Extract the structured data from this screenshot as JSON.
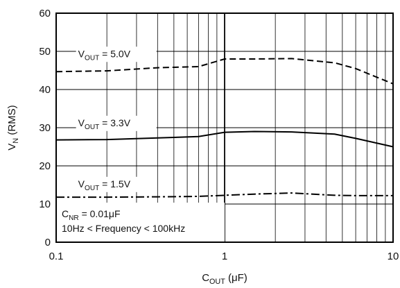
{
  "chart_data": {
    "type": "line",
    "x_scale": "log",
    "xlim": [
      0.1,
      10
    ],
    "ylim": [
      0,
      60
    ],
    "grid": true,
    "x_ticks": [
      {
        "value": 0.1,
        "label": "0.1"
      },
      {
        "value": 1,
        "label": "1"
      },
      {
        "value": 10,
        "label": "10"
      }
    ],
    "y_ticks": [
      {
        "value": 0,
        "label": "0"
      },
      {
        "value": 10,
        "label": "10"
      },
      {
        "value": 20,
        "label": "20"
      },
      {
        "value": 30,
        "label": "30"
      },
      {
        "value": 40,
        "label": "40"
      },
      {
        "value": 50,
        "label": "50"
      },
      {
        "value": 60,
        "label": "60"
      }
    ],
    "xlabel": {
      "main": "C",
      "sub": "OUT",
      "rest": " (μF)"
    },
    "ylabel": {
      "main": "V",
      "sub": "N",
      "rest": " (RMS)"
    },
    "series": [
      {
        "name": {
          "main": "V",
          "sub": "OUT",
          "rest": " = 5.0V"
        },
        "dash": "dashed",
        "x": [
          0.1,
          0.2,
          0.4,
          0.7,
          1.0,
          1.5,
          2.5,
          4.5,
          6.0,
          10
        ],
        "y": [
          44.7,
          44.9,
          45.7,
          46.0,
          48.0,
          48.0,
          48.1,
          47.0,
          45.5,
          41.5
        ]
      },
      {
        "name": {
          "main": "V",
          "sub": "OUT",
          "rest": " = 3.3V"
        },
        "dash": "solid",
        "x": [
          0.1,
          0.2,
          0.4,
          0.7,
          1.0,
          1.5,
          2.5,
          4.5,
          6.0,
          10
        ],
        "y": [
          26.8,
          26.9,
          27.3,
          27.7,
          28.8,
          29.0,
          28.9,
          28.3,
          27.2,
          25.0
        ]
      },
      {
        "name": {
          "main": "V",
          "sub": "OUT",
          "rest": " = 1.5V"
        },
        "dash": "dashdot",
        "x": [
          0.1,
          0.2,
          0.4,
          0.7,
          1.0,
          1.5,
          2.5,
          4.5,
          6.0,
          10
        ],
        "y": [
          11.8,
          11.8,
          11.9,
          12.0,
          12.3,
          12.6,
          12.9,
          12.3,
          12.2,
          12.2
        ]
      }
    ],
    "annotations": [
      {
        "main": "C",
        "sub": "NR",
        "rest": " = 0.01μF"
      },
      {
        "main": "10Hz < Frequency < 100kHz",
        "sub": "",
        "rest": ""
      }
    ]
  }
}
